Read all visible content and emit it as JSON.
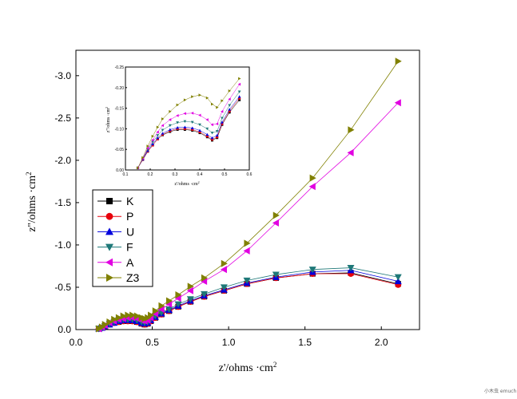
{
  "chart_data": [
    {
      "type": "line",
      "title": "",
      "xlabel": "z'/ohms ·cm",
      "ylabel": "z''/ohms ·cm",
      "label_superscript": "2",
      "xlim": [
        0,
        2.25
      ],
      "ylim": [
        0,
        -3.3
      ],
      "xticks": [
        0.0,
        0.5,
        1.0,
        1.5,
        2.0
      ],
      "xtick_labels": [
        "0.0",
        "0.5",
        "1.0",
        "1.5",
        "2.0"
      ],
      "yticks": [
        0,
        -0.5,
        -1.0,
        -1.5,
        -2.0,
        -2.5,
        -3.0
      ],
      "ytick_labels": [
        "0.0",
        "-0.5",
        "-1.0",
        "-1.5",
        "-2.0",
        "-2.5",
        "-3.0"
      ],
      "legend_position": "left-middle",
      "series": [
        {
          "name": "K",
          "color": "#000000",
          "marker": "square",
          "x": [
            0.15,
            0.17,
            0.19,
            0.22,
            0.25,
            0.28,
            0.31,
            0.34,
            0.37,
            0.4,
            0.43,
            0.45,
            0.47,
            0.49,
            0.52,
            0.56,
            0.61,
            0.67,
            0.75,
            0.84,
            0.97,
            1.12,
            1.31,
            1.55,
            1.8,
            2.11
          ],
          "y": [
            -0.01,
            -0.02,
            -0.04,
            -0.06,
            -0.08,
            -0.09,
            -0.1,
            -0.1,
            -0.1,
            -0.09,
            -0.07,
            -0.06,
            -0.07,
            -0.1,
            -0.14,
            -0.18,
            -0.22,
            -0.27,
            -0.33,
            -0.39,
            -0.46,
            -0.54,
            -0.61,
            -0.66,
            -0.67,
            -0.54
          ]
        },
        {
          "name": "P",
          "color": "#e8000b",
          "marker": "circle",
          "x": [
            0.15,
            0.17,
            0.19,
            0.22,
            0.25,
            0.28,
            0.31,
            0.34,
            0.37,
            0.4,
            0.43,
            0.45,
            0.47,
            0.49,
            0.52,
            0.56,
            0.61,
            0.67,
            0.75,
            0.84,
            0.97,
            1.12,
            1.31,
            1.55,
            1.8,
            2.11
          ],
          "y": [
            -0.01,
            -0.02,
            -0.04,
            -0.06,
            -0.08,
            -0.09,
            -0.1,
            -0.1,
            -0.1,
            -0.09,
            -0.07,
            -0.06,
            -0.07,
            -0.1,
            -0.14,
            -0.18,
            -0.22,
            -0.27,
            -0.33,
            -0.39,
            -0.46,
            -0.54,
            -0.61,
            -0.66,
            -0.66,
            -0.53
          ]
        },
        {
          "name": "U",
          "color": "#0000dd",
          "marker": "triangle-up",
          "x": [
            0.15,
            0.17,
            0.19,
            0.22,
            0.25,
            0.28,
            0.31,
            0.34,
            0.37,
            0.4,
            0.43,
            0.45,
            0.47,
            0.49,
            0.52,
            0.56,
            0.61,
            0.67,
            0.75,
            0.84,
            0.97,
            1.12,
            1.31,
            1.55,
            1.8,
            2.11
          ],
          "y": [
            -0.01,
            -0.02,
            -0.04,
            -0.06,
            -0.08,
            -0.1,
            -0.11,
            -0.11,
            -0.11,
            -0.1,
            -0.08,
            -0.07,
            -0.08,
            -0.11,
            -0.15,
            -0.19,
            -0.23,
            -0.28,
            -0.34,
            -0.4,
            -0.47,
            -0.55,
            -0.62,
            -0.68,
            -0.7,
            -0.57
          ]
        },
        {
          "name": "F",
          "color": "#1e7878",
          "marker": "triangle-down",
          "x": [
            0.15,
            0.17,
            0.19,
            0.22,
            0.25,
            0.28,
            0.31,
            0.34,
            0.37,
            0.4,
            0.43,
            0.45,
            0.47,
            0.49,
            0.52,
            0.56,
            0.61,
            0.67,
            0.75,
            0.84,
            0.97,
            1.12,
            1.31,
            1.55,
            1.8,
            2.11
          ],
          "y": [
            -0.01,
            -0.02,
            -0.04,
            -0.07,
            -0.09,
            -0.11,
            -0.12,
            -0.12,
            -0.12,
            -0.11,
            -0.09,
            -0.08,
            -0.09,
            -0.12,
            -0.16,
            -0.2,
            -0.24,
            -0.3,
            -0.36,
            -0.42,
            -0.5,
            -0.58,
            -0.65,
            -0.71,
            -0.73,
            -0.62
          ]
        },
        {
          "name": "A",
          "color": "#e100e1",
          "marker": "triangle-left",
          "x": [
            0.15,
            0.17,
            0.19,
            0.22,
            0.25,
            0.28,
            0.31,
            0.34,
            0.37,
            0.4,
            0.43,
            0.45,
            0.47,
            0.49,
            0.52,
            0.56,
            0.61,
            0.67,
            0.75,
            0.84,
            0.97,
            1.12,
            1.31,
            1.55,
            1.8,
            2.11
          ],
          "y": [
            -0.01,
            -0.03,
            -0.05,
            -0.08,
            -0.1,
            -0.12,
            -0.13,
            -0.14,
            -0.14,
            -0.13,
            -0.11,
            -0.1,
            -0.11,
            -0.14,
            -0.19,
            -0.24,
            -0.3,
            -0.37,
            -0.46,
            -0.57,
            -0.71,
            -0.93,
            -1.26,
            -1.69,
            -2.09,
            -2.68
          ]
        },
        {
          "name": "Z3",
          "color": "#808000",
          "marker": "triangle-right",
          "x": [
            0.15,
            0.17,
            0.19,
            0.22,
            0.25,
            0.28,
            0.31,
            0.34,
            0.37,
            0.4,
            0.43,
            0.45,
            0.47,
            0.49,
            0.52,
            0.56,
            0.61,
            0.67,
            0.75,
            0.84,
            0.97,
            1.12,
            1.31,
            1.55,
            1.8,
            2.11
          ],
          "y": [
            -0.01,
            -0.03,
            -0.06,
            -0.09,
            -0.12,
            -0.14,
            -0.16,
            -0.17,
            -0.17,
            -0.16,
            -0.14,
            -0.13,
            -0.14,
            -0.17,
            -0.22,
            -0.28,
            -0.34,
            -0.41,
            -0.51,
            -0.61,
            -0.78,
            -1.02,
            -1.35,
            -1.79,
            -2.36,
            -3.17
          ]
        }
      ]
    },
    {
      "type": "line",
      "title": "inset",
      "xlabel": "z'/ohms ·cm",
      "ylabel": "z''/ohms ·cm",
      "label_superscript": "2",
      "xlim": [
        0.1,
        0.6
      ],
      "ylim": [
        0,
        -0.25
      ],
      "xticks": [
        0.1,
        0.2,
        0.3,
        0.4,
        0.5,
        0.6
      ],
      "xtick_labels": [
        "0.1",
        "0.2",
        "0.3",
        "0.4",
        "0.5",
        "0.6"
      ],
      "yticks": [
        0,
        -0.05,
        -0.1,
        -0.15,
        -0.2,
        -0.25
      ],
      "ytick_labels": [
        "0.00",
        "-0.05",
        "-0.10",
        "-0.15",
        "-0.20",
        "-0.25"
      ],
      "series": [
        {
          "name": "K",
          "color": "#000000",
          "marker": "square",
          "x": [
            0.15,
            0.17,
            0.19,
            0.21,
            0.23,
            0.25,
            0.28,
            0.31,
            0.34,
            0.37,
            0.4,
            0.43,
            0.45,
            0.47,
            0.49,
            0.52,
            0.56
          ],
          "y": [
            -0.005,
            -0.025,
            -0.045,
            -0.06,
            -0.075,
            -0.085,
            -0.093,
            -0.098,
            -0.098,
            -0.096,
            -0.09,
            -0.08,
            -0.072,
            -0.078,
            -0.11,
            -0.14,
            -0.17
          ]
        },
        {
          "name": "P",
          "color": "#e8000b",
          "marker": "circle",
          "x": [
            0.15,
            0.17,
            0.19,
            0.21,
            0.23,
            0.25,
            0.28,
            0.31,
            0.34,
            0.37,
            0.4,
            0.43,
            0.45,
            0.47,
            0.49,
            0.52,
            0.56
          ],
          "y": [
            -0.005,
            -0.025,
            -0.045,
            -0.06,
            -0.075,
            -0.086,
            -0.095,
            -0.1,
            -0.1,
            -0.098,
            -0.092,
            -0.082,
            -0.074,
            -0.08,
            -0.112,
            -0.143,
            -0.174
          ]
        },
        {
          "name": "U",
          "color": "#0000dd",
          "marker": "triangle-up",
          "x": [
            0.15,
            0.17,
            0.19,
            0.21,
            0.23,
            0.25,
            0.28,
            0.31,
            0.34,
            0.37,
            0.4,
            0.43,
            0.45,
            0.47,
            0.49,
            0.52,
            0.56
          ],
          "y": [
            -0.005,
            -0.026,
            -0.047,
            -0.063,
            -0.078,
            -0.089,
            -0.098,
            -0.103,
            -0.104,
            -0.102,
            -0.096,
            -0.086,
            -0.078,
            -0.084,
            -0.116,
            -0.147,
            -0.178
          ]
        },
        {
          "name": "F",
          "color": "#1e7878",
          "marker": "triangle-down",
          "x": [
            0.15,
            0.17,
            0.19,
            0.21,
            0.23,
            0.25,
            0.28,
            0.31,
            0.34,
            0.37,
            0.4,
            0.43,
            0.45,
            0.47,
            0.49,
            0.52,
            0.56
          ],
          "y": [
            -0.005,
            -0.027,
            -0.05,
            -0.068,
            -0.084,
            -0.097,
            -0.108,
            -0.115,
            -0.118,
            -0.116,
            -0.11,
            -0.1,
            -0.09,
            -0.094,
            -0.126,
            -0.157,
            -0.19
          ]
        },
        {
          "name": "A",
          "color": "#e100e1",
          "marker": "triangle-left",
          "x": [
            0.15,
            0.17,
            0.19,
            0.21,
            0.23,
            0.25,
            0.28,
            0.31,
            0.34,
            0.37,
            0.4,
            0.43,
            0.45,
            0.47,
            0.49,
            0.52,
            0.56
          ],
          "y": [
            -0.005,
            -0.028,
            -0.053,
            -0.073,
            -0.092,
            -0.108,
            -0.122,
            -0.132,
            -0.137,
            -0.138,
            -0.133,
            -0.122,
            -0.11,
            -0.112,
            -0.142,
            -0.172,
            -0.208
          ]
        },
        {
          "name": "Z3",
          "color": "#808000",
          "marker": "triangle-right",
          "x": [
            0.15,
            0.17,
            0.19,
            0.21,
            0.23,
            0.25,
            0.28,
            0.31,
            0.34,
            0.37,
            0.4,
            0.43,
            0.45,
            0.47,
            0.49,
            0.52,
            0.56
          ],
          "y": [
            -0.005,
            -0.03,
            -0.058,
            -0.082,
            -0.104,
            -0.124,
            -0.142,
            -0.158,
            -0.17,
            -0.178,
            -0.182,
            -0.175,
            -0.16,
            -0.152,
            -0.168,
            -0.192,
            -0.222
          ]
        }
      ]
    }
  ],
  "watermark": "小木虫 emuch.net"
}
